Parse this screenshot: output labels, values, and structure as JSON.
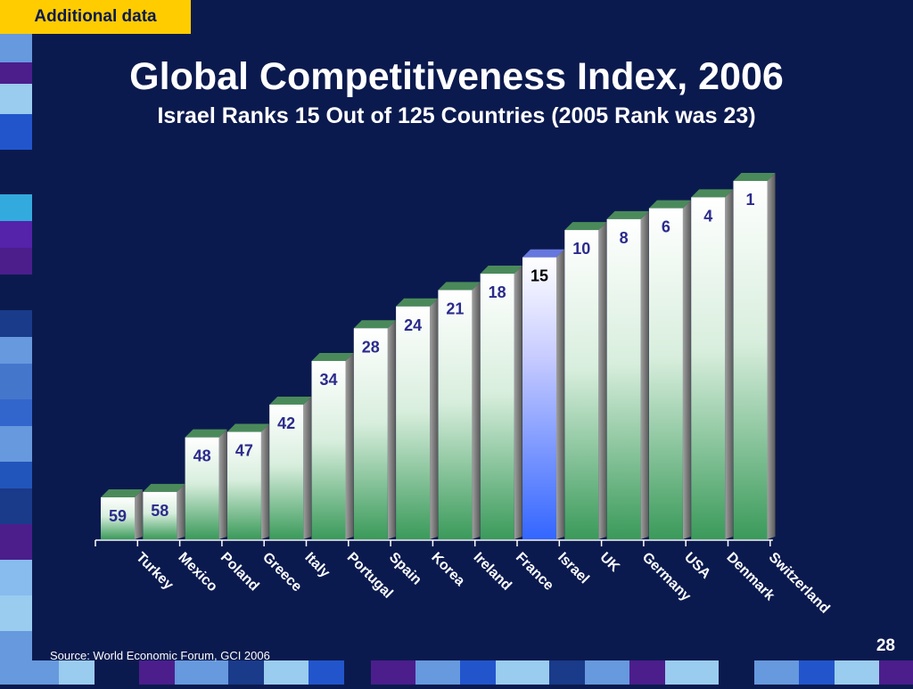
{
  "tag": "Additional data",
  "title": "Global Competitiveness Index, 2006",
  "subtitle": "Israel Ranks 15 Out of 125 Countries (2005 Rank was 23)",
  "source": "Source: World Economic Forum, GCI 2006",
  "page_number": "28",
  "colors": {
    "background": "#0b1a4e",
    "tag": "#ffcc00",
    "bar_bottom": "#3a9a5a",
    "highlight_bottom": "#3366ff",
    "value_label": "#2b2b8c"
  },
  "chart_data": {
    "type": "bar",
    "title": "Global Competitiveness Index, 2006",
    "subtitle": "Israel Ranks 15 Out of 125 Countries (2005 Rank was 23)",
    "categories": [
      "Turkey",
      "Mexico",
      "Poland",
      "Greece",
      "Italy",
      "Portugal",
      "Spain",
      "Korea",
      "Ireland",
      "France",
      "Israel",
      "UK",
      "Germany",
      "USA",
      "Denmark",
      "Switzerland"
    ],
    "values": [
      59,
      58,
      48,
      47,
      42,
      34,
      28,
      24,
      21,
      18,
      15,
      10,
      8,
      6,
      4,
      1
    ],
    "value_labels": [
      "59",
      "58",
      "48",
      "47",
      "42",
      "34",
      "28",
      "24",
      "21",
      "18",
      "15",
      "10",
      "8",
      "6",
      "4",
      "1"
    ],
    "highlight": "Israel",
    "xlabel": "",
    "ylabel": "",
    "grid": false,
    "legend": "none"
  }
}
